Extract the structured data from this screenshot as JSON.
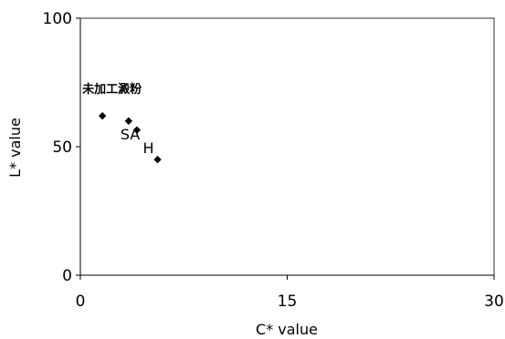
{
  "chart_data": {
    "type": "scatter",
    "title": "",
    "xlabel": "C* value",
    "ylabel": "L* value",
    "xlim": [
      0,
      30
    ],
    "ylim": [
      0,
      100
    ],
    "x_ticks": [
      "0",
      "15",
      "30"
    ],
    "y_ticks": [
      "0",
      "50",
      "100"
    ],
    "grid": false,
    "legend": "none",
    "marker": "diamond",
    "marker_color": "#000000",
    "series": [
      {
        "points": [
          {
            "x": 1.6,
            "y": 62,
            "label": "未加工澱粉"
          },
          {
            "x": 3.5,
            "y": 60,
            "label": "SA"
          },
          {
            "x": 4.1,
            "y": 56.5,
            "label": ""
          },
          {
            "x": 5.6,
            "y": 45,
            "label": "H"
          }
        ]
      }
    ]
  }
}
